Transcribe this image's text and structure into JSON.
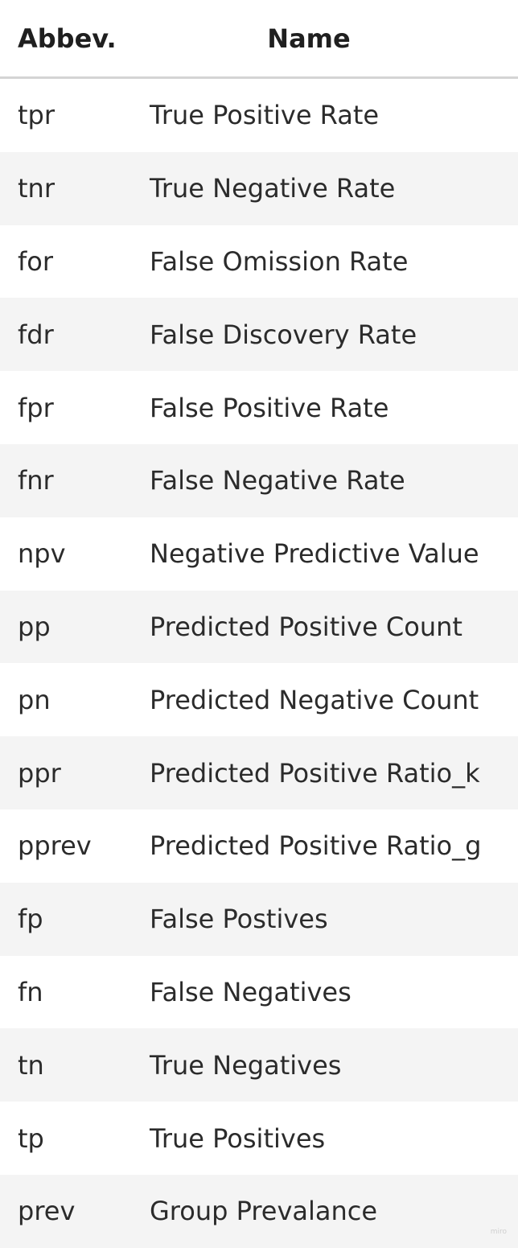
{
  "table": {
    "headers": {
      "abbrev": "Abbev.",
      "name": "Name"
    },
    "rows": [
      {
        "abbrev": "tpr",
        "name": "True Positive Rate"
      },
      {
        "abbrev": "tnr",
        "name": "True Negative Rate"
      },
      {
        "abbrev": "for",
        "name": "False Omission Rate"
      },
      {
        "abbrev": "fdr",
        "name": "False Discovery Rate"
      },
      {
        "abbrev": "fpr",
        "name": "False Positive Rate"
      },
      {
        "abbrev": "fnr",
        "name": "False Negative Rate"
      },
      {
        "abbrev": "npv",
        "name": "Negative Predictive Value"
      },
      {
        "abbrev": "pp",
        "name": "Predicted Positive Count"
      },
      {
        "abbrev": "pn",
        "name": "Predicted Negative Count"
      },
      {
        "abbrev": "ppr",
        "name": "Predicted Positive Ratio_k"
      },
      {
        "abbrev": "pprev",
        "name": "Predicted Positive Ratio_g"
      },
      {
        "abbrev": "fp",
        "name": "False Postives"
      },
      {
        "abbrev": "fn",
        "name": "False Negatives"
      },
      {
        "abbrev": "tn",
        "name": "True Negatives"
      },
      {
        "abbrev": "tp",
        "name": "True Positives"
      },
      {
        "abbrev": "prev",
        "name": "Group Prevalance"
      }
    ]
  },
  "watermark": "miro"
}
